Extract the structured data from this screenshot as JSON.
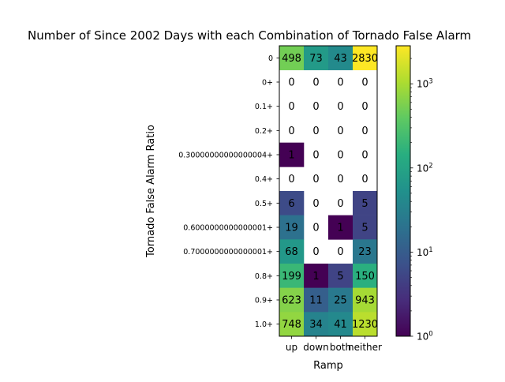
{
  "chart_data": {
    "type": "heatmap",
    "title": "Number of Since 2002 Days with each Combination of Tornado False Alarm",
    "xlabel": "Ramp",
    "ylabel": "Tornado False Alarm Ratio",
    "x_categories": [
      "up",
      "down",
      "both",
      "neither"
    ],
    "y_categories": [
      "0",
      "0+",
      "0.1+",
      "0.2+",
      "0.30000000000000004+",
      "0.4+",
      "0.5+",
      "0.6000000000000001+",
      "0.7000000000000001+",
      "0.8+",
      "0.9+",
      "1.0+"
    ],
    "values": [
      [
        498,
        73,
        43,
        2830
      ],
      [
        0,
        0,
        0,
        0
      ],
      [
        0,
        0,
        0,
        0
      ],
      [
        0,
        0,
        0,
        0
      ],
      [
        1,
        0,
        0,
        0
      ],
      [
        0,
        0,
        0,
        0
      ],
      [
        6,
        0,
        0,
        5
      ],
      [
        19,
        0,
        1,
        5
      ],
      [
        68,
        0,
        0,
        23
      ],
      [
        199,
        1,
        5,
        150
      ],
      [
        623,
        11,
        25,
        943
      ],
      [
        748,
        34,
        41,
        1230
      ]
    ],
    "color_scale": {
      "type": "log",
      "colormap": "viridis",
      "min": 1,
      "max": 2830,
      "ticks": [
        1,
        10,
        100,
        1000
      ],
      "tick_labels": [
        "10",
        "10",
        "10",
        "10"
      ],
      "tick_exponents": [
        "0",
        "1",
        "2",
        "3"
      ]
    },
    "zero_cells": "blank"
  }
}
